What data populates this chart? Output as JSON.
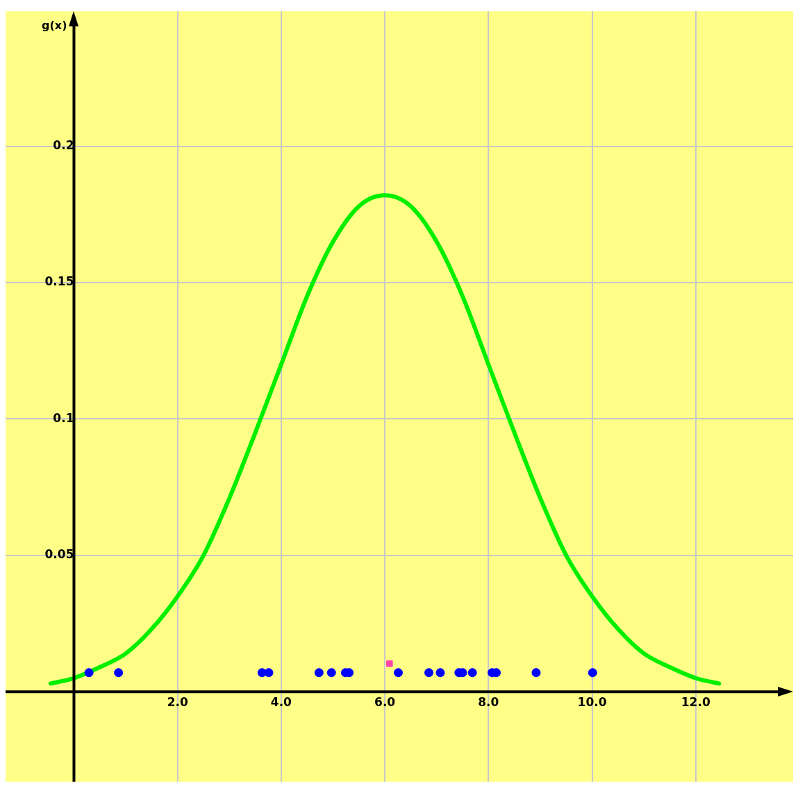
{
  "chart_data": {
    "type": "line",
    "ylabel": "g(x)",
    "xlim": [
      -1.32,
      13.88
    ],
    "ylim": [
      -0.033,
      0.2495
    ],
    "xticks": [
      {
        "value": 2,
        "label": "2.0"
      },
      {
        "value": 4,
        "label": "4.0"
      },
      {
        "value": 6,
        "label": "6.0"
      },
      {
        "value": 8,
        "label": "8.0"
      },
      {
        "value": 10,
        "label": "10.0"
      },
      {
        "value": 12,
        "label": "12.0"
      }
    ],
    "yticks": [
      0.05,
      0.1,
      0.15,
      0.2
    ],
    "grid": true,
    "legend": false,
    "series": [
      {
        "type": "line",
        "color": "#00ee00",
        "marker": "none",
        "line_style": "solid",
        "x": [
          -0.45,
          0,
          0.5,
          1,
          1.5,
          2,
          2.5,
          3,
          3.5,
          4,
          4.5,
          5,
          5.5,
          6,
          6.5,
          7,
          7.5,
          8,
          8.5,
          9,
          9.5,
          10,
          10.5,
          11,
          11.5,
          12,
          12.45
        ],
        "values": [
          0.003,
          0.005,
          0.009,
          0.014,
          0.023,
          0.035,
          0.05,
          0.071,
          0.095,
          0.12,
          0.145,
          0.165,
          0.178,
          0.182,
          0.178,
          0.165,
          0.145,
          0.12,
          0.095,
          0.071,
          0.05,
          0.035,
          0.023,
          0.014,
          0.009,
          0.005,
          0.003
        ]
      },
      {
        "type": "scatter",
        "color": "#0000ff",
        "marker": "circle",
        "x": [
          0.29,
          0.86,
          3.63,
          3.76,
          4.73,
          4.97,
          5.24,
          5.31,
          6.26,
          6.85,
          7.07,
          7.43,
          7.5,
          7.69,
          8.07,
          8.15,
          8.92,
          10.01
        ],
        "values": [
          0.007,
          0.007,
          0.007,
          0.007,
          0.007,
          0.007,
          0.007,
          0.007,
          0.007,
          0.007,
          0.007,
          0.007,
          0.007,
          0.007,
          0.007,
          0.007,
          0.007,
          0.007
        ]
      },
      {
        "type": "scatter",
        "color": "#ff44aa",
        "marker": "square",
        "x": [
          6.09
        ],
        "values": [
          0.0103
        ]
      }
    ]
  }
}
